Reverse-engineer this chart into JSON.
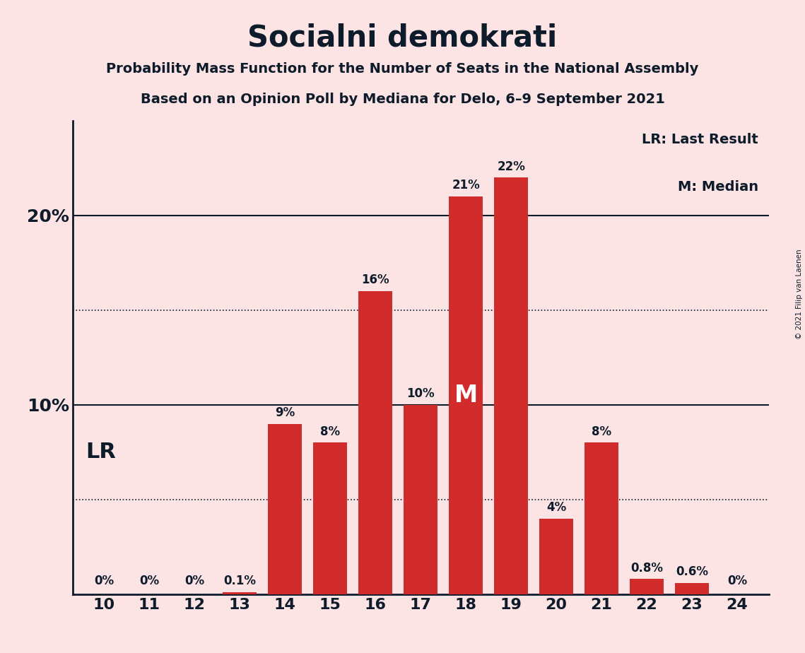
{
  "title": "Socialni demokrati",
  "subtitle1": "Probability Mass Function for the Number of Seats in the National Assembly",
  "subtitle2": "Based on an Opinion Poll by Mediana for Delo, 6–9 September 2021",
  "copyright": "© 2021 Filip van Laenen",
  "categories": [
    10,
    11,
    12,
    13,
    14,
    15,
    16,
    17,
    18,
    19,
    20,
    21,
    22,
    23,
    24
  ],
  "values": [
    0.0,
    0.0,
    0.0,
    0.1,
    9.0,
    8.0,
    16.0,
    10.0,
    21.0,
    22.0,
    4.0,
    8.0,
    0.8,
    0.6,
    0.0
  ],
  "labels": [
    "0%",
    "0%",
    "0%",
    "0.1%",
    "9%",
    "8%",
    "16%",
    "10%",
    "21%",
    "22%",
    "4%",
    "8%",
    "0.8%",
    "0.6%",
    "0%"
  ],
  "bar_color": "#d12b2b",
  "background_color": "#fce4e4",
  "text_color": "#0d1b2a",
  "median_seat": 18,
  "lr_seat": 10,
  "legend_lr": "LR: Last Result",
  "legend_m": "M: Median",
  "lr_label": "LR",
  "ylim": [
    0,
    25
  ],
  "dotted_yticks": [
    5,
    15
  ],
  "solid_yticks": [
    10,
    20
  ],
  "ytick_positions": [
    10,
    20
  ],
  "ytick_labels": [
    "10%",
    "20%"
  ]
}
